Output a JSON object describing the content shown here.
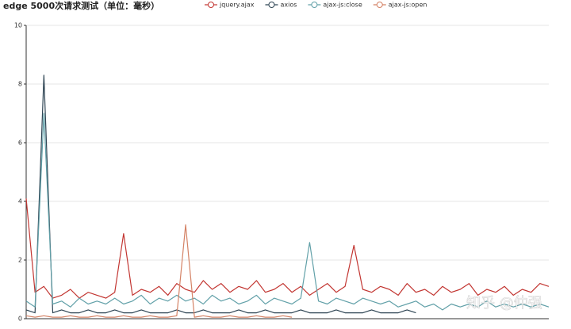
{
  "chart_data": {
    "type": "line",
    "title": "edge 5000次请求测试（单位：毫秒）",
    "watermark": "知乎 @仲强",
    "ylim": [
      0,
      10
    ],
    "yticks": [
      0,
      2,
      4,
      6,
      8,
      10
    ],
    "grid": true,
    "legend": "top",
    "series": [
      {
        "name": "jquery.ajax",
        "color": "#c23531",
        "values": [
          4.1,
          0.9,
          1.1,
          0.7,
          0.8,
          1.0,
          0.7,
          0.9,
          0.8,
          0.7,
          0.9,
          2.9,
          0.8,
          1.0,
          0.9,
          1.1,
          0.8,
          1.2,
          1.0,
          0.9,
          1.3,
          1.0,
          1.2,
          0.9,
          1.1,
          1.0,
          1.3,
          0.9,
          1.0,
          1.2,
          0.9,
          1.1,
          0.8,
          1.0,
          1.2,
          0.9,
          1.1,
          2.5,
          1.0,
          0.9,
          1.1,
          1.0,
          0.8,
          1.2,
          0.9,
          1.0,
          0.8,
          1.1,
          0.9,
          1.0,
          1.2,
          0.8,
          1.0,
          0.9,
          1.1,
          0.8,
          1.0,
          0.9,
          1.2,
          1.1
        ]
      },
      {
        "name": "axios",
        "color": "#2f4554",
        "values": [
          0.3,
          0.2,
          8.3,
          0.2,
          0.3,
          0.2,
          0.2,
          0.3,
          0.2,
          0.2,
          0.3,
          0.2,
          0.2,
          0.3,
          0.2,
          0.2,
          0.2,
          0.3,
          0.2,
          0.2,
          0.3,
          0.2,
          0.2,
          0.2,
          0.3,
          0.2,
          0.2,
          0.3,
          0.2,
          0.2,
          0.2,
          0.3,
          0.2,
          0.2,
          0.2,
          0.3,
          0.2,
          0.2,
          0.2,
          0.3,
          0.2,
          0.2,
          0.2,
          0.3,
          0.2,
          null,
          null,
          null,
          null,
          null,
          null,
          null,
          null,
          null,
          null,
          null,
          null,
          null,
          null,
          null
        ]
      },
      {
        "name": "ajax-js:close",
        "color": "#61a0a8",
        "values": [
          0.6,
          0.4,
          7.0,
          0.5,
          0.6,
          0.4,
          0.7,
          0.5,
          0.6,
          0.5,
          0.7,
          0.5,
          0.6,
          0.8,
          0.5,
          0.7,
          0.6,
          0.8,
          0.6,
          0.7,
          0.5,
          0.8,
          0.6,
          0.7,
          0.5,
          0.6,
          0.8,
          0.5,
          0.7,
          0.6,
          0.5,
          0.7,
          2.6,
          0.6,
          0.5,
          0.7,
          0.6,
          0.5,
          0.7,
          0.6,
          0.5,
          0.6,
          0.4,
          0.5,
          0.6,
          0.4,
          0.5,
          0.3,
          0.5,
          0.4,
          0.5,
          0.4,
          0.6,
          0.4,
          0.5,
          0.4,
          0.5,
          0.4,
          0.5,
          0.4
        ]
      },
      {
        "name": "ajax-js:open",
        "color": "#d48265",
        "values": [
          0.1,
          0.05,
          0.1,
          0.05,
          0.05,
          0.1,
          0.05,
          0.05,
          0.1,
          0.05,
          0.05,
          0.1,
          0.05,
          0.05,
          0.1,
          0.05,
          0.05,
          0.1,
          3.2,
          0.05,
          0.1,
          0.05,
          0.05,
          0.1,
          0.05,
          0.05,
          0.1,
          0.05,
          0.05,
          0.1,
          0.05,
          null,
          null,
          null,
          null,
          null,
          null,
          null,
          null,
          null,
          null,
          null,
          null,
          null,
          null,
          null,
          null,
          null,
          null,
          null,
          null,
          null,
          null,
          null,
          null,
          null,
          null,
          null,
          null,
          null
        ]
      }
    ]
  }
}
